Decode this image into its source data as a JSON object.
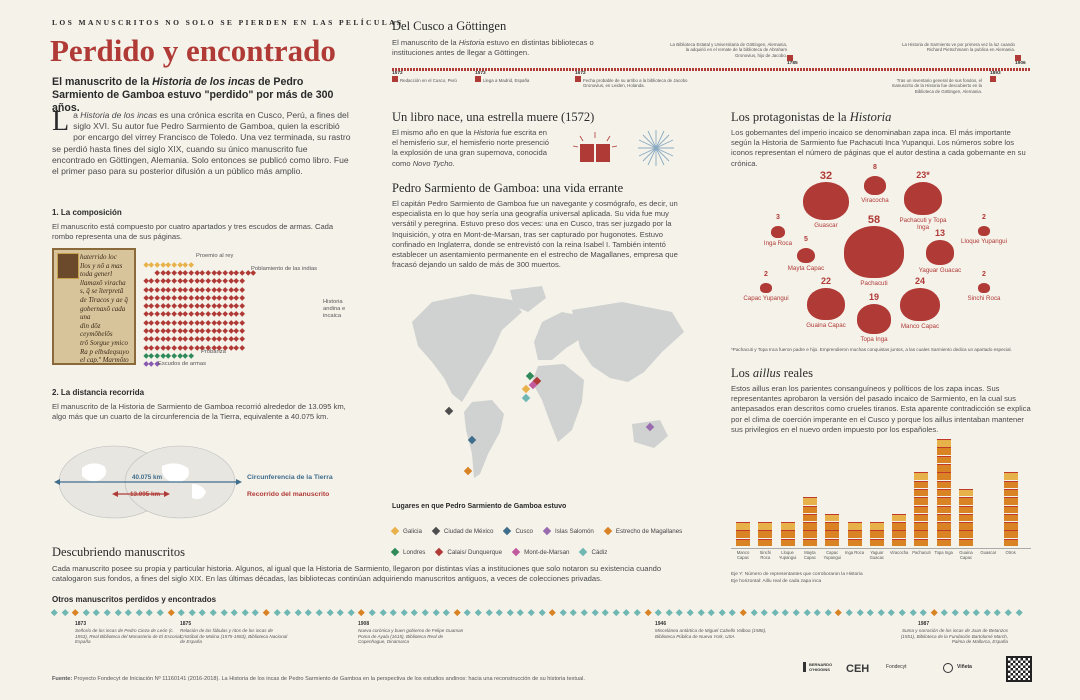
{
  "header": {
    "kicker": "LOS MANUSCRITOS NO SOLO SE PIERDEN EN LAS PELÍCULAS",
    "title": "Perdido y encontrado",
    "lead_a": "El manuscrito de la ",
    "lead_em": "Historia de los incas",
    "lead_b": " de Pedro Sarmiento de Gamboa estuvo \"perdido\" por más de 300 años."
  },
  "intro": {
    "dropcap": "L",
    "text_a": "a ",
    "em": "Historia de los incas",
    "text_b": " es una crónica escrita en Cusco, Perú, a fines del siglo XVI. Su autor fue Pedro Sarmiento de Gamboa, quien la escribió por encargo del virrey Francisco de Toledo. Una vez terminada, su rastro se perdió hasta fines del siglo XIX, cuando su único manuscrito fue encontrado en Göttingen, Alemania. Solo entonces se publicó como libro. Fue el primer paso para su posterior difusión a un público más amplio."
  },
  "composition": {
    "heading": "1. La composición",
    "text": "El manuscrito está compuesto por cuatro apartados y tres escudos de armas. Cada rombo representa una de sus páginas.",
    "labels": {
      "proemio": "Proemio al rey",
      "poblamiento": "Poblamiento de las indias",
      "historia": "Historia andina e incaica",
      "probanza": "Probanza",
      "escudos": "Escudos de armas"
    },
    "manuscript_lines": [
      "haterrido loc",
      "Ilos y nō a mas",
      "toda generl",
      "llamaxō viracha",
      "s, q̄ se ĩterpretā",
      "de Tiracos y ae q̄",
      "gobernaxō cada una",
      "din dōz ceymōbelŏs",
      "trō Sorgue ymico",
      "Ra p elbsdeqsuyo",
      "el cap.º Marmōto de",
      "gamboa"
    ]
  },
  "distance": {
    "heading": "2. La distancia recorrida",
    "text": "El manuscrito de la Historia de Sarmiento de Gamboa recorrió alrededor de 13.095 km, algo más que un cuarto de la circunferencia de la Tierra, equivalente a 40.075 km.",
    "earth_value": "40.075 km",
    "route_value": "13.095 km",
    "earth_label": "Circunferencia de la Tierra",
    "route_label": "Recorrido del manuscrito"
  },
  "gottingen": {
    "heading": "Del Cusco a Göttingen",
    "text_a": "El manuscrito de la ",
    "em": "Historia",
    "text_b": " estuvo en distintas bibliotecas o instituciones antes de llegar a Göttingen.",
    "events": [
      {
        "year": "1572",
        "text": "Redacción en el Cusco, Perú"
      },
      {
        "year": "1573",
        "text": "Llega a Madrid, España"
      },
      {
        "year": "1672",
        "text": "Fecha probable de su arribo a la biblioteca de Jacobo Gronovius, en Leiden, Holanda."
      },
      {
        "year": "1785",
        "text": "La Biblioteca Estatal y Universitaria de Göttingen, Alemania, la adquirió en el remate de la biblioteca de Abraham Gronovius, hijo de Jacobo."
      },
      {
        "year": "1893",
        "text": "Tras un inventario general de sus fondos, el manuscrito de la Historia fue descubierto en la Biblioteca de Göttingen, Alemania."
      },
      {
        "year": "1906",
        "text": "La Historia de Sarmiento ve por primera vez la luz cuando Richard Pietschmann la publica en Alemania."
      }
    ]
  },
  "star": {
    "heading": "Un libro nace, una estrella muere (1572)",
    "text_a": "El mismo año en que la ",
    "em": "Historia",
    "text_b": " fue escrita en el hemisferio sur, el hemisferio norte presenció la explosión de una gran supernova, conocida como ",
    "em2": "Novo Tycho",
    "text_c": "."
  },
  "bio": {
    "heading": "Pedro Sarmiento de Gamboa: una vida errante",
    "text": "El capitán Pedro Sarmiento de Gamboa fue un navegante y cosmógrafo, es decir, un especialista en lo que hoy sería una geografía universal aplicada. Su vida fue muy versátil y peregrina. Estuvo preso dos veces: una en Cusco, tras ser juzgado por la Inquisición, y otra en Mont-de-Marsan, tras ser capturado por hugonotes. Estuvo confinado en Inglaterra, donde se entrevistó con la reina Isabel I. También intentó establecer un asentamiento permanente en el estrecho de Magallanes, empresa que fracasó dejando un saldo de más de 300 muertos."
  },
  "map": {
    "legend_title": "Lugares en que Pedro Sarmiento de Gamboa estuvo",
    "places": [
      {
        "name": "Galicia",
        "color": "#e8b24a"
      },
      {
        "name": "Ciudad de México",
        "color": "#4d4d4d"
      },
      {
        "name": "Cusco",
        "color": "#3f6d8c"
      },
      {
        "name": "Islas Salomón",
        "color": "#9b6bb0"
      },
      {
        "name": "Estrecho de Magallanes",
        "color": "#d98324"
      },
      {
        "name": "Londres",
        "color": "#2f8a5a"
      },
      {
        "name": "Calais/ Dunquerque",
        "color": "#b03a36"
      },
      {
        "name": "Mont-de-Marsan",
        "color": "#c25a9e"
      },
      {
        "name": "Cádiz",
        "color": "#6fb7b3"
      }
    ]
  },
  "protagonists": {
    "heading_a": "Los protagonistas de la ",
    "heading_em": "Historia",
    "text": "Los gobernantes del imperio incaico se denominaban zapa inca. El más importante según la Historia de Sarmiento fue Pachacuti Inca Yupanqui. Los números sobre los iconos representan el número de páginas que el autor destina a cada gobernante en su crónica.",
    "rulers": [
      {
        "name": "Viracocha",
        "pages": "8"
      },
      {
        "name": "Guascar",
        "pages": "32"
      },
      {
        "name": "Pachacuti y Topa Inga",
        "pages": "23*"
      },
      {
        "name": "Inga Roca",
        "pages": "3"
      },
      {
        "name": "Lloque Yupangui",
        "pages": "2"
      },
      {
        "name": "Mayta Capac",
        "pages": "5"
      },
      {
        "name": "Pachacuti",
        "pages": "58"
      },
      {
        "name": "Yaguar Guacac",
        "pages": "13"
      },
      {
        "name": "Capac Yupangui",
        "pages": "2"
      },
      {
        "name": "Guaina Capac",
        "pages": "22"
      },
      {
        "name": "Topa Inga",
        "pages": "19"
      },
      {
        "name": "Manco Capac",
        "pages": "24"
      },
      {
        "name": "Sinchi Roca",
        "pages": "2"
      }
    ],
    "note": "*Pachacuti y Topa Inca fueron padre e hijo. Emprendieron muchas conquistas juntos, a las cuales Sarmiento dedica un apartado especial."
  },
  "ayllus": {
    "heading_a": "Los ",
    "heading_em": "aillus",
    "heading_b": " reales",
    "text": "Estos aillus eran los parientes consanguíneos y políticos de los zapa incas. Sus representantes aprobaron la versión del pasado incaico de Sarmiento, en la cual sus antepasados eran descritos como crueles tiranos. Esta aparente contradicción se explica por el clima de coerción imperante en el Cusco y porque los aillus intentaban mantener sus privilegios en el nuevo orden impuesto por los españoles.",
    "chart_data": {
      "type": "bar",
      "categories": [
        "Manco Capac",
        "Sinchi Roca",
        "Lloque Yupangui",
        "Mayta Capac",
        "Capac Yupangui",
        "Inga Roca",
        "Yaguar Guacac",
        "Viracocha",
        "Pachacuti",
        "Topa Inga",
        "Guaina Capac",
        "Guascar",
        "Otros"
      ],
      "values": [
        3,
        3,
        3,
        6,
        4,
        3,
        3,
        4,
        9,
        13,
        7,
        0,
        9
      ],
      "xlabel": "Eje horizontal: Aillu real de cada zapa inca",
      "ylabel": "Eje Y: Número de representantes que corroboraron la Historia"
    }
  },
  "discovering": {
    "heading": "Descubriendo manuscritos",
    "text": "Cada manuscrito posee su propia y particular historia. Algunos, al igual que la Historia de Sarmiento, llegaron por distintas vías a instituciones que solo notaron su existencia cuando catalogaron sus fondos, a fines del siglo XIX. En las últimas décadas, las bibliotecas continúan adquiriendo manuscritos antiguos, a veces de colecciones privadas."
  },
  "others": {
    "heading": "Otros manuscritos perdidos y encontrados",
    "items": [
      {
        "year": "1873",
        "text": "Señorío de los incas de Pedro Cieza de León (c. 1553), Real Biblioteca del Monasterio de El Escorial, España"
      },
      {
        "year": "1875",
        "text": "Relación de las fábulas y ritos de los incas de Cristóbal de Molina (1575-1583), Biblioteca Nacional de España"
      },
      {
        "year": "1908",
        "text": "Nueva corónica y buen gobierno de Felipe Guaman Poma de Ayala (1615), Biblioteca Real de Copenhague, Dinamarca"
      },
      {
        "year": "1946",
        "text": "Miscelánea antártica de Miguel Cabello Valboa (1586), Biblioteca Pública de Nueva York, USA"
      },
      {
        "year": "1987",
        "text": "Suma y narración de los incas de Juan de Betanzos (1551), Biblioteca de la Fundación Bartolomé March, Palma de Mallorca, España"
      }
    ]
  },
  "footer": {
    "source_label": "Fuente:",
    "source": "Proyecto Fondecyt de Iniciación Nº 11160141 (2016-2018). La Historia de los incas de Pedro Sarmiento de Gamboa en la perspectiva de los estudios andinos: hacia una reconstrucción de su historia textual.",
    "logos": [
      "BERNARDO O'HIGGINS",
      "CEH",
      "Fondecyt",
      "Viñeta"
    ]
  }
}
